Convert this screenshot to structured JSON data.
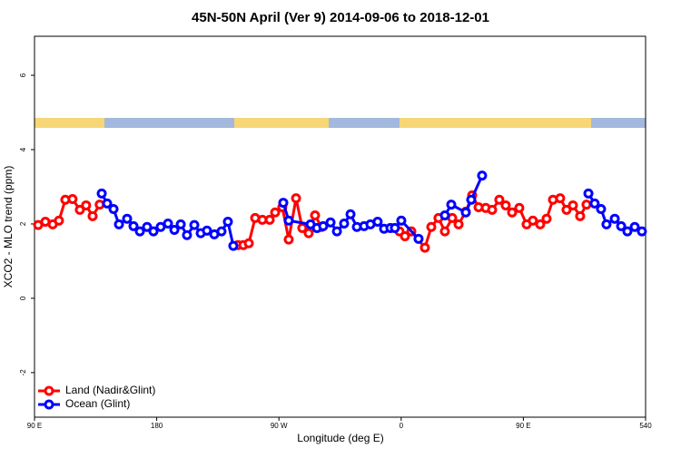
{
  "chart_data": {
    "type": "line",
    "title": "45N-50N April (Ver 9)   2014-09-06 to 2018-12-01",
    "xlabel": "Longitude (deg E)",
    "ylabel": "XCO2 - MLO trend (ppm)",
    "xlim": [
      90,
      540
    ],
    "xticks": [
      {
        "value": 90,
        "label": "90 E"
      },
      180,
      {
        "value": 270,
        "label": "90 W"
      },
      {
        "value": 360,
        "label": "0"
      },
      {
        "value": 450,
        "label": "90 E"
      },
      540
    ],
    "ylim": [
      -3.2,
      7.05
    ],
    "yticks": [
      -2,
      0,
      2,
      4,
      6
    ],
    "legend": "bottom-left",
    "series": [
      {
        "name": "Land (Nadir&Glint)",
        "color": "#ff0000",
        "x": [
          92.7,
          98,
          103.4,
          108,
          112.7,
          118,
          123.4,
          128,
          132.8,
          138,
          null,
          239.8,
          243.8,
          247.8,
          252.5,
          257.8,
          263.2,
          267.2,
          272.5,
          277.2,
          282.6,
          287.2,
          291.9,
          296.6,
          301.3,
          null,
          358.8,
          362.8,
          367.5,
          377.5,
          382.2,
          387.5,
          392.2,
          397.6,
          402.3,
          407.6,
          412.3,
          417,
          422.3,
          427,
          432.3,
          437,
          441.7,
          447,
          452.4,
          457,
          462.4,
          467.1,
          471.8,
          477.1,
          481.8,
          486.5,
          491.8,
          496.5
        ],
        "values": [
          1.97,
          2.06,
          1.99,
          2.09,
          2.65,
          2.67,
          2.38,
          2.5,
          2.21,
          2.52,
          null,
          1.43,
          1.43,
          1.48,
          2.16,
          2.11,
          2.11,
          2.31,
          2.45,
          1.58,
          2.69,
          1.89,
          1.75,
          2.23,
          1.92,
          null,
          1.8,
          1.67,
          1.8,
          1.36,
          1.92,
          2.16,
          1.8,
          2.16,
          1.99,
          2.33,
          2.77,
          2.45,
          2.43,
          2.38,
          2.65,
          2.5,
          2.31,
          2.43,
          1.99,
          2.09,
          1.99,
          2.14,
          2.65,
          2.69,
          2.38,
          2.5,
          2.21,
          2.52
        ]
      },
      {
        "name": "Ocean (Glint)",
        "color": "#0000ff",
        "x": [
          139.5,
          143.5,
          148.2,
          152.2,
          158.2,
          162.9,
          167.6,
          172.9,
          177.6,
          182.9,
          188.3,
          193,
          197.7,
          202.3,
          207.7,
          212.4,
          217,
          222.4,
          227.7,
          232.4,
          236.4,
          null,
          273.2,
          277.2,
          293.3,
          298,
          302.6,
          308,
          312.7,
          318,
          322.7,
          327.4,
          332.7,
          337.4,
          342.7,
          347.4,
          352.1,
          355.4,
          360.1,
          372.8,
          null,
          392.2,
          396.9,
          407.6,
          411.6,
          419.6,
          null,
          497.9,
          502.5,
          507.2,
          511.2,
          517.3,
          522,
          526.6,
          532,
          537.3
        ],
        "values": [
          2.82,
          2.55,
          2.4,
          1.99,
          2.14,
          1.94,
          1.8,
          1.92,
          1.8,
          1.92,
          2.01,
          1.84,
          1.99,
          1.7,
          1.97,
          1.75,
          1.82,
          1.72,
          1.8,
          2.06,
          1.41,
          null,
          2.57,
          2.09,
          1.99,
          1.89,
          1.94,
          2.04,
          1.8,
          2.01,
          2.26,
          1.92,
          1.94,
          1.99,
          2.06,
          1.87,
          1.89,
          1.89,
          2.09,
          1.6,
          null,
          2.23,
          2.52,
          2.31,
          2.65,
          3.3,
          null,
          2.82,
          2.55,
          2.4,
          1.99,
          2.14,
          1.94,
          1.8,
          1.92,
          1.8
        ]
      }
    ]
  }
}
